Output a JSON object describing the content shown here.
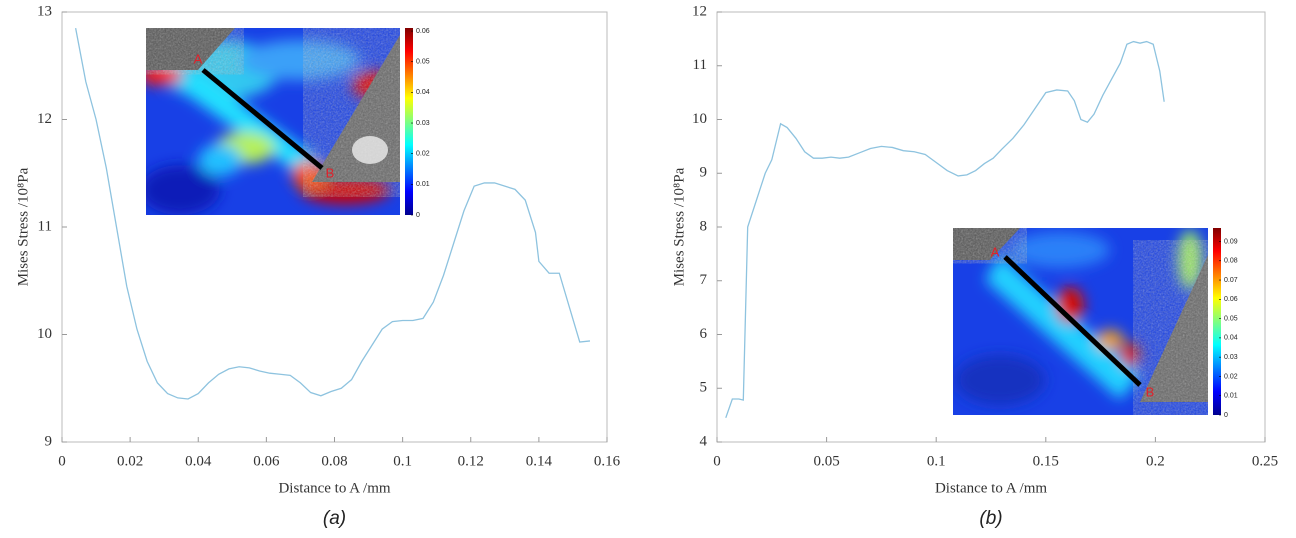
{
  "chart_data": [
    {
      "type": "line",
      "caption": "(a)",
      "x_label": "Distance to A /mm",
      "y_label": "Mises Stress /10⁸Pa",
      "xlim": [
        0,
        0.16
      ],
      "xticks": [
        0,
        0.02,
        0.04,
        0.06,
        0.08,
        0.1,
        0.12,
        0.14,
        0.16
      ],
      "ylim": [
        9,
        13
      ],
      "yticks": [
        9,
        10,
        11,
        12,
        13
      ],
      "series": [
        {
          "color": "#8ec3df",
          "x": [
            0.004,
            0.007,
            0.01,
            0.013,
            0.016,
            0.019,
            0.022,
            0.025,
            0.028,
            0.031,
            0.034,
            0.037,
            0.04,
            0.043,
            0.046,
            0.049,
            0.052,
            0.055,
            0.058,
            0.061,
            0.064,
            0.067,
            0.07,
            0.073,
            0.076,
            0.079,
            0.082,
            0.085,
            0.088,
            0.091,
            0.094,
            0.097,
            0.1,
            0.103,
            0.106,
            0.109,
            0.112,
            0.115,
            0.118,
            0.121,
            0.124,
            0.127,
            0.13,
            0.133,
            0.136,
            0.139,
            0.14,
            0.143,
            0.146,
            0.149,
            0.152,
            0.155
          ],
          "values": [
            12.85,
            12.35,
            12.0,
            11.55,
            11.0,
            10.45,
            10.05,
            9.75,
            9.55,
            9.45,
            9.41,
            9.4,
            9.45,
            9.55,
            9.63,
            9.68,
            9.7,
            9.69,
            9.66,
            9.64,
            9.63,
            9.62,
            9.55,
            9.46,
            9.43,
            9.47,
            9.5,
            9.58,
            9.75,
            9.9,
            10.05,
            10.12,
            10.13,
            10.13,
            10.15,
            10.3,
            10.55,
            10.85,
            11.15,
            11.38,
            11.41,
            11.41,
            11.38,
            11.35,
            11.25,
            10.95,
            10.68,
            10.57,
            10.57,
            10.25,
            9.93,
            9.94
          ]
        }
      ],
      "inset": {
        "labels": [
          "A",
          "B"
        ],
        "clim": [
          0,
          0.061
        ],
        "cticks": [
          0,
          0.01,
          0.02,
          0.03,
          0.04,
          0.05,
          0.06
        ]
      }
    },
    {
      "type": "line",
      "caption": "(b)",
      "x_label": "Distance to A /mm",
      "y_label": "Mises Stress /10⁸Pa",
      "xlim": [
        0,
        0.25
      ],
      "xticks": [
        0,
        0.05,
        0.1,
        0.15,
        0.2,
        0.25
      ],
      "ylim": [
        4,
        12
      ],
      "yticks": [
        4,
        5,
        6,
        7,
        8,
        9,
        10,
        11,
        12
      ],
      "series": [
        {
          "color": "#8ec3df",
          "x": [
            0.004,
            0.007,
            0.01,
            0.012,
            0.014,
            0.018,
            0.022,
            0.025,
            0.029,
            0.032,
            0.036,
            0.04,
            0.044,
            0.048,
            0.052,
            0.056,
            0.06,
            0.065,
            0.07,
            0.075,
            0.08,
            0.085,
            0.09,
            0.095,
            0.1,
            0.105,
            0.11,
            0.114,
            0.118,
            0.122,
            0.126,
            0.13,
            0.135,
            0.14,
            0.145,
            0.15,
            0.155,
            0.16,
            0.163,
            0.166,
            0.169,
            0.172,
            0.176,
            0.18,
            0.184,
            0.187,
            0.19,
            0.193,
            0.196,
            0.199,
            0.202,
            0.204
          ],
          "values": [
            4.45,
            4.8,
            4.8,
            4.78,
            8.0,
            8.5,
            9.0,
            9.25,
            9.92,
            9.85,
            9.65,
            9.4,
            9.28,
            9.28,
            9.3,
            9.28,
            9.3,
            9.38,
            9.46,
            9.5,
            9.48,
            9.42,
            9.4,
            9.35,
            9.2,
            9.05,
            8.95,
            8.97,
            9.05,
            9.18,
            9.28,
            9.45,
            9.65,
            9.9,
            10.2,
            10.5,
            10.55,
            10.53,
            10.35,
            10.0,
            9.95,
            10.1,
            10.45,
            10.75,
            11.05,
            11.4,
            11.45,
            11.42,
            11.45,
            11.4,
            10.9,
            10.33
          ]
        }
      ],
      "inset": {
        "labels": [
          "A",
          "B"
        ],
        "clim": [
          0,
          0.097
        ],
        "cticks": [
          0,
          0.01,
          0.02,
          0.03,
          0.04,
          0.05,
          0.06,
          0.07,
          0.08,
          0.09
        ]
      }
    }
  ]
}
